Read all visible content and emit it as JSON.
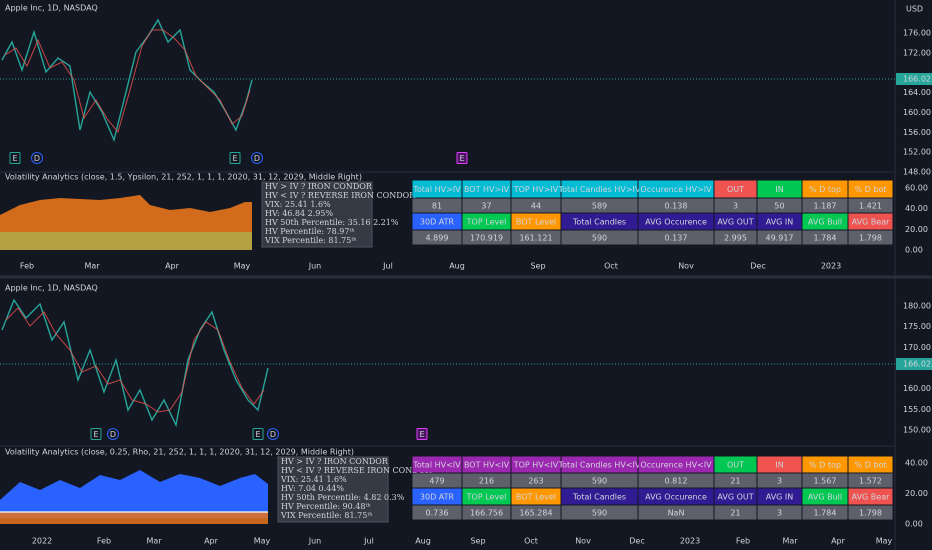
{
  "panels": [
    {
      "symbol": "Apple Inc, 1D, NASDAQ",
      "currency": "USD",
      "price_labels": [
        "176.00",
        "172.00",
        "164.00",
        "160.00",
        "156.00",
        "152.00",
        "148.00"
      ],
      "last_price": "166.02",
      "events": [
        "E",
        "D",
        "E",
        "D",
        "E"
      ],
      "indicator": {
        "title": "Volatility Analytics (close, 1.5, Ypsilon, 21, 252, 1, 1, 1, 2020, 31, 12, 2029, Middle Right)",
        "info": [
          "HV > IV ?  IRON CONDOR",
          "HV < IV ? REVERSE IRON CONDOR",
          "VIX: 25.41  1.6%",
          "HV: 46.84  2.95%",
          "HV 50th Percentile: 35.16  2.21%",
          "HV Percentile: 78.97ᵗʰ",
          "VIX Percentile: 81.75ᵗʰ"
        ],
        "axis": [
          "60.00",
          "40.00",
          "20.00",
          "0.00"
        ],
        "table": [
          [
            "Total  HV>IV",
            "BOT  HV>IV",
            "TOP  HV>IV",
            "Total Candles HV>IV",
            "Occurence  HV>IV",
            "OUT",
            "IN",
            "% D top",
            "% D bot"
          ],
          [
            "81",
            "37",
            "44",
            "589",
            "0.138",
            "3",
            "50",
            "1.187",
            "1.421"
          ],
          [
            "30D ATR",
            "TOP Level",
            "BOT Level",
            "Total Candles",
            "AVG Occurence",
            "AVG OUT",
            "AVG IN",
            "AVG Bull",
            "AVG Bear"
          ],
          [
            "4.899",
            "170.919",
            "161.121",
            "590",
            "0.137",
            "2.995",
            "49.917",
            "1.784",
            "1.798"
          ]
        ]
      },
      "time_labels": [
        "Feb",
        "Mar",
        "Apr",
        "May",
        "Jun",
        "Jul",
        "Aug",
        "Sep",
        "Oct",
        "Nov",
        "Dec",
        "2023"
      ]
    },
    {
      "symbol": "Apple Inc, 1D, NASDAQ",
      "price_labels": [
        "180.00",
        "175.00",
        "170.00",
        "160.00",
        "155.00",
        "150.00"
      ],
      "last_price": "166.02",
      "events": [
        "E",
        "D",
        "E",
        "D",
        "E"
      ],
      "indicator": {
        "title": "Volatility Analytics (close, 0.25, Rho, 21, 252, 1, 1, 1, 2020, 31, 12, 2029, Middle Right)",
        "info": [
          "HV > IV ?  IRON CONDOR",
          "HV < IV ? REVERSE IRON CONDOR",
          "VIX: 25.41  1.6%",
          "HV: 7.04  0.44%",
          "HV 50th Percentile: 4.82  0.3%",
          "HV Percentile: 90.48ᵗʰ",
          "VIX Percentile: 81.75ᵗʰ"
        ],
        "axis": [
          "40.00",
          "20.00",
          "0.00"
        ],
        "table": [
          [
            "Total  HV<IV",
            "BOT  HV<IV",
            "TOP  HV<IV",
            "Total Candles HV<IV",
            "Occurence  HV<IV",
            "OUT",
            "IN",
            "% D top",
            "% D bot"
          ],
          [
            "479",
            "216",
            "263",
            "590",
            "0.812",
            "21",
            "3",
            "1.567",
            "1.572"
          ],
          [
            "30D ATR",
            "TOP Level",
            "BOT Level",
            "Total Candles",
            "AVG Occurence",
            "AVG OUT",
            "AVG IN",
            "AVG Bull",
            "AVG Bear"
          ],
          [
            "0.736",
            "166.756",
            "165.284",
            "590",
            "NaN",
            "21",
            "3",
            "1.784",
            "1.798"
          ]
        ]
      },
      "time_labels": [
        "2022",
        "Feb",
        "Mar",
        "Apr",
        "May",
        "Jun",
        "Jul",
        "Aug",
        "Sep",
        "Oct",
        "Nov",
        "Dec",
        "2023",
        "Feb",
        "Mar",
        "Apr",
        "May"
      ]
    }
  ]
}
